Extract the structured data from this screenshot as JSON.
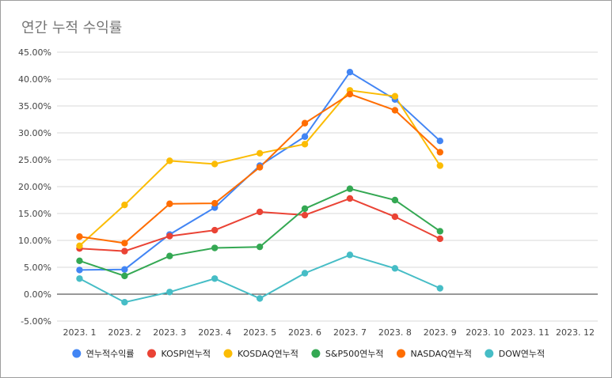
{
  "chart_data": {
    "type": "line",
    "title": "연간 누적 수익률",
    "categories": [
      "2023. 1",
      "2023. 2",
      "2023. 3",
      "2023. 4",
      "2023. 5",
      "2023. 6",
      "2023. 7",
      "2023. 8",
      "2023. 9",
      "2023. 10",
      "2023. 11",
      "2023. 12"
    ],
    "y_ticks": [
      "45.00%",
      "40.00%",
      "35.00%",
      "30.00%",
      "25.00%",
      "20.00%",
      "15.00%",
      "10.00%",
      "5.00%",
      "0.00%",
      "-5.00%"
    ],
    "ylim": [
      -5,
      45
    ],
    "grid": true,
    "legend_position": "bottom",
    "series": [
      {
        "name": "연누적수익률",
        "color": "#4285f4",
        "values": [
          4.5,
          4.6,
          11.1,
          16.1,
          23.9,
          29.3,
          41.3,
          36.2,
          28.5,
          null,
          null,
          null
        ]
      },
      {
        "name": "KOSPI연누적",
        "color": "#ea4335",
        "values": [
          8.5,
          8.0,
          10.8,
          11.9,
          15.3,
          14.7,
          17.8,
          14.4,
          10.3,
          null,
          null,
          null
        ]
      },
      {
        "name": "KOSDAQ연누적",
        "color": "#fbbc04",
        "values": [
          9.0,
          16.6,
          24.8,
          24.2,
          26.2,
          27.9,
          37.9,
          36.8,
          23.9,
          null,
          null,
          null
        ]
      },
      {
        "name": "S&P500연누적",
        "color": "#34a853",
        "values": [
          6.2,
          3.4,
          7.1,
          8.6,
          8.8,
          15.9,
          19.6,
          17.5,
          11.7,
          null,
          null,
          null
        ]
      },
      {
        "name": "NASDAQ연누적",
        "color": "#ff6d01",
        "values": [
          10.7,
          9.5,
          16.8,
          16.9,
          23.6,
          31.8,
          37.2,
          34.2,
          26.4,
          null,
          null,
          null
        ]
      },
      {
        "name": "DOW연누적",
        "color": "#46bdc6",
        "values": [
          2.9,
          -1.5,
          0.4,
          2.9,
          -0.8,
          3.9,
          7.3,
          4.8,
          1.1,
          null,
          null,
          null
        ]
      }
    ]
  }
}
